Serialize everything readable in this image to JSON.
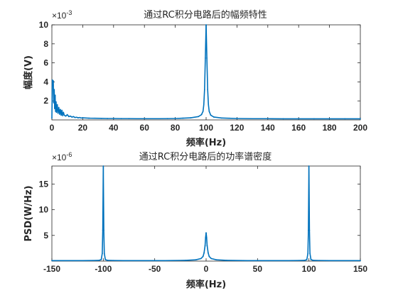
{
  "figure": {
    "background": "#ffffff"
  },
  "chart_data": [
    {
      "type": "line",
      "title": "通过RC积分电路后的幅频特性",
      "xlabel": "频率(Hz)",
      "ylabel": "幅度(V)",
      "y_exponent_label": "×10",
      "y_exponent": "-3",
      "xlim": [
        0,
        200
      ],
      "ylim": [
        0,
        10
      ],
      "xticks": [
        0,
        20,
        40,
        60,
        80,
        100,
        120,
        140,
        160,
        180,
        200
      ],
      "yticks": [
        2,
        4,
        6,
        8,
        10
      ],
      "grid": false,
      "color": "#0072bd",
      "series": [
        {
          "x": [
            0,
            0.3,
            0.6,
            0.9,
            1.2,
            1.5,
            1.8,
            2.1,
            2.4,
            2.7,
            3,
            3.5,
            4,
            4.5,
            5,
            5.5,
            6,
            6.5,
            7,
            7.5,
            8,
            9,
            10,
            11,
            12,
            13,
            14,
            15,
            16,
            17,
            18,
            19,
            20,
            24,
            28,
            32,
            36,
            40,
            45,
            50,
            55,
            60,
            65,
            70,
            75,
            80,
            85,
            90,
            95,
            97,
            98,
            98.5,
            99,
            99.5,
            100,
            100.5,
            101,
            101.5,
            102,
            103,
            105,
            110,
            115,
            120,
            130,
            140,
            150,
            160,
            170,
            180,
            190,
            200
          ],
          "y": [
            0.2,
            4.2,
            3.6,
            4.1,
            1.8,
            3.2,
            1.2,
            2.6,
            0.9,
            1.9,
            0.8,
            1.6,
            0.7,
            1.3,
            0.6,
            1.1,
            0.5,
            1.0,
            0.45,
            0.8,
            0.5,
            0.4,
            0.55,
            0.35,
            0.4,
            0.3,
            0.35,
            0.25,
            0.28,
            0.22,
            0.25,
            0.2,
            0.22,
            0.18,
            0.17,
            0.16,
            0.15,
            0.15,
            0.14,
            0.14,
            0.13,
            0.13,
            0.13,
            0.13,
            0.14,
            0.15,
            0.18,
            0.22,
            0.35,
            0.55,
            0.9,
            1.6,
            3.2,
            6.5,
            10,
            6.5,
            3.2,
            1.6,
            0.9,
            0.5,
            0.3,
            0.2,
            0.17,
            0.15,
            0.13,
            0.13,
            0.12,
            0.12,
            0.12,
            0.12,
            0.12,
            0.12
          ]
        }
      ]
    },
    {
      "type": "line",
      "title": "通过RC积分电路后的功率谱密度",
      "xlabel": "频率(Hz)",
      "ylabel": "PSD(W/Hz)",
      "y_exponent_label": "×10",
      "y_exponent": "-6",
      "xlim": [
        -150,
        150
      ],
      "ylim": [
        0,
        18.5
      ],
      "xticks": [
        -150,
        -100,
        -50,
        0,
        50,
        100,
        150
      ],
      "yticks": [
        5,
        10,
        15
      ],
      "grid": false,
      "color": "#0072bd",
      "series": [
        {
          "x": [
            -150,
            -140,
            -130,
            -120,
            -110,
            -104,
            -102,
            -101,
            -100.5,
            -100,
            -99.5,
            -99,
            -98,
            -96,
            -90,
            -80,
            -60,
            -40,
            -20,
            -10,
            -5,
            -3,
            -2,
            -1,
            -0.5,
            0,
            0.5,
            1,
            2,
            3,
            5,
            10,
            20,
            40,
            60,
            80,
            90,
            96,
            98,
            99,
            99.5,
            100,
            100.5,
            101,
            102,
            104,
            110,
            120,
            130,
            140,
            150
          ],
          "y": [
            0.1,
            0.1,
            0.1,
            0.1,
            0.12,
            0.15,
            0.3,
            1.5,
            6,
            18.5,
            6,
            1.5,
            0.3,
            0.15,
            0.12,
            0.1,
            0.1,
            0.1,
            0.15,
            0.25,
            0.5,
            0.9,
            1.6,
            3.0,
            4.6,
            5.5,
            4.6,
            3.0,
            1.6,
            0.9,
            0.5,
            0.25,
            0.15,
            0.1,
            0.1,
            0.1,
            0.12,
            0.15,
            0.3,
            1.5,
            6,
            18.5,
            6,
            1.5,
            0.3,
            0.15,
            0.12,
            0.1,
            0.1,
            0.1,
            0.1
          ]
        }
      ]
    }
  ]
}
